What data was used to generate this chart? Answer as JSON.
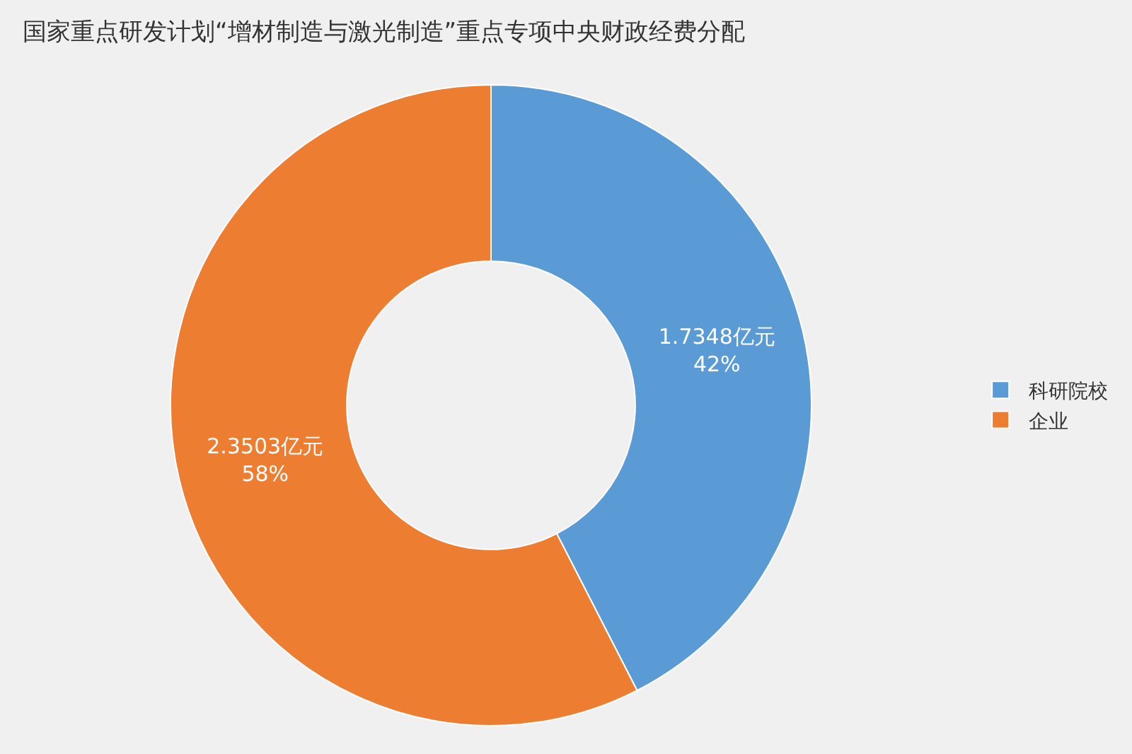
{
  "chart_data": {
    "type": "donut",
    "title": "国家重点研发计划“增材制造与激光制造”重点专项中央财政经费分配",
    "categories": [
      "科研院校",
      "企业"
    ],
    "values": [
      1.7348,
      2.3503
    ],
    "colors": [
      "#5b9bd5",
      "#ed7d31"
    ],
    "value_labels": [
      "1.7348亿元\n42%",
      "2.3503亿元\n58%"
    ],
    "legend": "right"
  }
}
